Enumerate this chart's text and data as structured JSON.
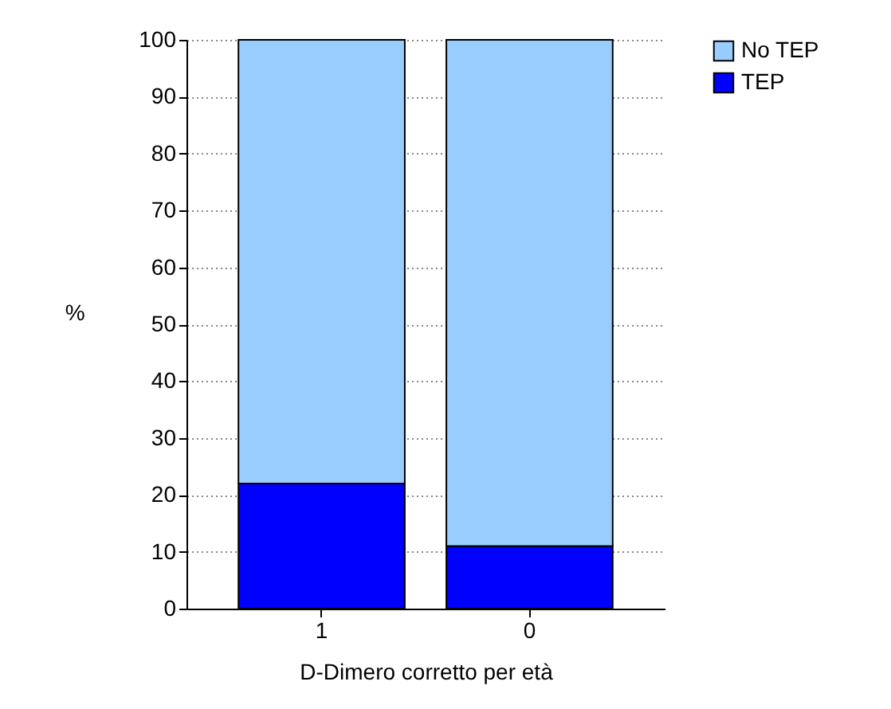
{
  "chart_data": {
    "type": "bar",
    "stacked": true,
    "xlabel": "D-Dimero corretto per età",
    "ylabel": "%",
    "categories": [
      "1",
      "0"
    ],
    "series": [
      {
        "name": "TEP",
        "color": "#0000ff",
        "values": [
          22,
          11
        ]
      },
      {
        "name": "No TEP",
        "color": "#99ccff",
        "values": [
          78,
          89
        ]
      }
    ],
    "ylim": [
      0,
      100
    ],
    "yticks": [
      0,
      10,
      20,
      30,
      40,
      50,
      60,
      70,
      80,
      90,
      100
    ],
    "grid": "y",
    "legend": "right"
  }
}
